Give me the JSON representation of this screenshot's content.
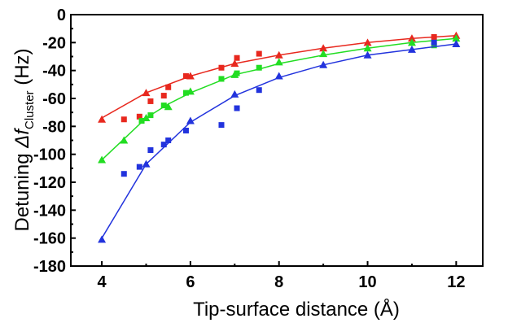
{
  "chart_data": {
    "type": "scatter",
    "xlabel": "Tip-surface distance (Å)",
    "ylabel_prefix": "Detuning ",
    "ylabel_symbol": "Δf",
    "ylabel_subscript": "Cluster",
    "ylabel_unit": " (Hz)",
    "xlim": [
      3.3,
      12.6
    ],
    "ylim": [
      -180,
      0
    ],
    "xticks": [
      4,
      6,
      8,
      10,
      12
    ],
    "yticks": [
      0,
      -20,
      -40,
      -60,
      -80,
      -100,
      -120,
      -140,
      -160,
      -180
    ],
    "grid": false,
    "series": [
      {
        "color": "#e8281e",
        "line": {
          "x": [
            4,
            5,
            6,
            7,
            8,
            9,
            10,
            11,
            12
          ],
          "y": [
            -74,
            -56,
            -44,
            -35,
            -29,
            -24,
            -20,
            -17,
            -15
          ]
        },
        "triangles": {
          "x": [
            4,
            5,
            6,
            7,
            8,
            9,
            10,
            11,
            12
          ],
          "y": [
            -75,
            -56,
            -44,
            -35,
            -29,
            -24,
            -20,
            -17,
            -15
          ]
        },
        "squares": {
          "x": [
            4.5,
            4.85,
            5.1,
            5.4,
            5.5,
            5.9,
            6.7,
            7.05,
            7.55,
            11.5
          ],
          "y": [
            -75,
            -73,
            -62,
            -58,
            -52,
            -44,
            -38,
            -31,
            -28,
            -16
          ]
        }
      },
      {
        "color": "#22dd22",
        "line": {
          "x": [
            4,
            4.5,
            5,
            5.5,
            6,
            6.7,
            7,
            7.55,
            8,
            9,
            10,
            11,
            12
          ],
          "y": [
            -104,
            -89,
            -74,
            -64,
            -56,
            -47,
            -43,
            -39,
            -35,
            -29,
            -24,
            -20,
            -17
          ]
        },
        "triangles": {
          "x": [
            4,
            4.5,
            5,
            5.5,
            6,
            7,
            8,
            9,
            10,
            11,
            12
          ],
          "y": [
            -104,
            -90,
            -74,
            -66,
            -55,
            -43,
            -34,
            -28,
            -24,
            -20,
            -17
          ]
        },
        "squares": {
          "x": [
            4.9,
            5.1,
            5.4,
            5.9,
            6.7,
            7.05,
            7.55,
            11.5
          ],
          "y": [
            -76,
            -72,
            -65,
            -56,
            -46,
            -42,
            -38,
            -22
          ]
        }
      },
      {
        "color": "#2233dd",
        "line": {
          "x": [
            4,
            5,
            6,
            7,
            8,
            9,
            10,
            11,
            12
          ],
          "y": [
            -160,
            -107,
            -77,
            -58,
            -45,
            -36,
            -29,
            -25,
            -21
          ]
        },
        "triangles": {
          "x": [
            4,
            5,
            6,
            7,
            8,
            9,
            10,
            11,
            12
          ],
          "y": [
            -161,
            -107,
            -76,
            -57,
            -44,
            -36,
            -29,
            -25,
            -21
          ]
        },
        "squares": {
          "x": [
            4.5,
            4.85,
            5.1,
            5.4,
            5.5,
            5.9,
            6.7,
            7.05,
            7.55,
            11.5
          ],
          "y": [
            -114,
            -109,
            -97,
            -93,
            -90,
            -83,
            -79,
            -67,
            -54,
            -20
          ]
        }
      }
    ]
  }
}
